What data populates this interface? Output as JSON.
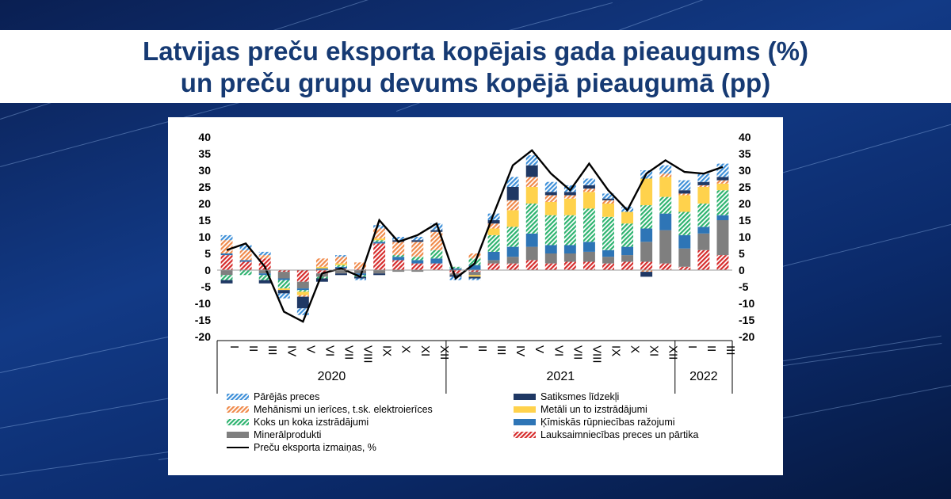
{
  "header": {
    "title_line1": "Latvijas preču eksporta kopējais gada pieaugums (%)",
    "title_line2": "un preču grupu devums kopējā pieaugumā (pp)"
  },
  "chart_data": {
    "type": "bar",
    "stacked": true,
    "ylim": [
      -20,
      40
    ],
    "yticks": [
      -20,
      -15,
      -10,
      -5,
      0,
      5,
      10,
      15,
      20,
      25,
      30,
      35,
      40
    ],
    "categories": [
      "I",
      "II",
      "III",
      "IV",
      "V",
      "VI",
      "VII",
      "VIII",
      "IX",
      "X",
      "XI",
      "XII",
      "I",
      "II",
      "III",
      "IV",
      "V",
      "VI",
      "VII",
      "VIII",
      "IX",
      "X",
      "XI",
      "XII",
      "I",
      "II",
      "III"
    ],
    "years": [
      {
        "label": "2020",
        "start": 0,
        "count": 12
      },
      {
        "label": "2021",
        "start": 12,
        "count": 12
      },
      {
        "label": "2022",
        "start": 24,
        "count": 3
      }
    ],
    "series": [
      {
        "name": "Lauksaimniecības preces un pārtika",
        "color": "#d62b2b",
        "pattern": "hatch",
        "values": [
          4.5,
          2.5,
          3.5,
          -0.5,
          -3.5,
          -1,
          0.5,
          0.3,
          8,
          3,
          2,
          2,
          -1,
          -0.5,
          2,
          2,
          3,
          2,
          2.5,
          2.5,
          2,
          2.5,
          2.5,
          2,
          1,
          6,
          4.5
        ]
      },
      {
        "name": "Minerālprodukti",
        "color": "#7f7f7f",
        "pattern": "solid",
        "values": [
          -1.5,
          0,
          -1,
          -2,
          -2,
          -1,
          -1,
          -1,
          -1,
          -0.5,
          -0.5,
          0,
          -0.5,
          -1,
          1,
          2,
          4,
          3,
          2.5,
          3,
          2,
          2,
          6,
          10,
          5.5,
          5,
          10.5
        ]
      },
      {
        "name": "Ķīmiskās rūpniecības ražojumi",
        "color": "#2e75b6",
        "pattern": "solid",
        "values": [
          0.5,
          0.5,
          -0.5,
          -0.5,
          -0.5,
          0.5,
          0.5,
          -0.5,
          0.5,
          1,
          1,
          1.5,
          0.5,
          1.5,
          2.5,
          3,
          4,
          2.5,
          2.5,
          3,
          2,
          2.5,
          4,
          5,
          4,
          2,
          1.5
        ]
      },
      {
        "name": "Koks un koka izstrādājumi",
        "color": "#2db36f",
        "pattern": "hatch",
        "values": [
          -1.5,
          -1.5,
          -1.5,
          -2.5,
          -0.5,
          -0.5,
          0.5,
          -0.5,
          0.5,
          0.5,
          1,
          2.5,
          0.5,
          2,
          5,
          6,
          9,
          9,
          9,
          10,
          10,
          7,
          7,
          5,
          7,
          7,
          7.5
        ]
      },
      {
        "name": "Metāli un to izstrādājumi",
        "color": "#ffd24c",
        "pattern": "solid",
        "values": [
          0,
          0,
          0,
          -0.5,
          -1,
          0.5,
          0.5,
          0,
          0.5,
          0,
          0,
          0,
          0,
          -0.5,
          2,
          5,
          5,
          4,
          5,
          5,
          4,
          3.5,
          8,
          6,
          5,
          5,
          2
        ]
      },
      {
        "name": "Mehānismi un ierīces, t.sk. elektroierīces",
        "color": "#f08a4b",
        "pattern": "hatch",
        "values": [
          4,
          3,
          1,
          0,
          -0.5,
          2.5,
          2,
          2,
          3,
          4,
          4.5,
          5.5,
          0,
          1.5,
          1.5,
          3,
          3,
          2,
          1,
          1,
          1,
          0,
          -0.5,
          1,
          0.5,
          0.5,
          1
        ]
      },
      {
        "name": "Satiksmes līdzekļi",
        "color": "#1f3864",
        "pattern": "solid",
        "values": [
          -1,
          0,
          -1,
          -1,
          -3.5,
          -1,
          -0.5,
          -0.5,
          -0.5,
          0.5,
          0.5,
          0.5,
          -0.5,
          -0.5,
          1,
          4,
          3.5,
          1,
          1,
          1,
          0.5,
          0,
          -1.5,
          0,
          1,
          1,
          1
        ]
      },
      {
        "name": "Pārējās preces",
        "color": "#3d8fd8",
        "pattern": "hatch",
        "values": [
          1.5,
          1.5,
          1,
          -1.5,
          -2,
          0,
          0.5,
          -0.5,
          1,
          1,
          1,
          2,
          -1,
          -0.5,
          2,
          3,
          3,
          3,
          2,
          2,
          1.5,
          1.5,
          2.5,
          2.5,
          3,
          2.5,
          4
        ]
      }
    ],
    "line": {
      "name": "Preču eksporta izmaiņas, %",
      "color": "#000000",
      "values": [
        6,
        8,
        1,
        -12.5,
        -15.5,
        -1,
        0.5,
        -2,
        15,
        8.5,
        10.5,
        14,
        -2.5,
        2,
        17,
        31.5,
        36,
        29,
        24,
        32,
        24,
        18,
        29,
        33,
        29.5,
        29,
        31
      ]
    }
  }
}
